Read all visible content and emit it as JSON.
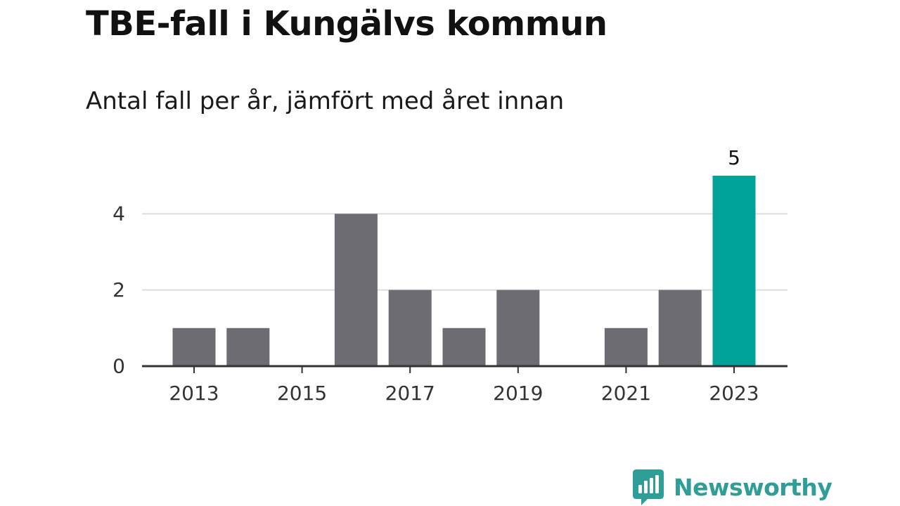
{
  "title": "TBE-fall i Kungälvs kommun",
  "subtitle": "Antal fall per år, jämfört med året innan",
  "brand": {
    "name": "Newsworthy",
    "color": "#2e9e96",
    "icon": "bar-chart-speech-bubble-icon"
  },
  "chart_data": {
    "type": "bar",
    "categories": [
      "2013",
      "2014",
      "2015",
      "2016",
      "2017",
      "2018",
      "2019",
      "2020",
      "2021",
      "2022",
      "2023"
    ],
    "values": [
      1,
      1,
      0,
      4,
      2,
      1,
      2,
      0,
      1,
      2,
      5
    ],
    "x_tick_labels": [
      "2013",
      "2015",
      "2017",
      "2019",
      "2021",
      "2023"
    ],
    "y_ticks": [
      0,
      2,
      4
    ],
    "ylim": [
      0,
      5
    ],
    "xlabel": "",
    "ylabel": "",
    "grid": true,
    "highlight": {
      "category": "2023",
      "value_label": "5"
    },
    "colors": {
      "bar": "#6d6c72",
      "highlight": "#00a398",
      "grid": "#dddddd",
      "axis": "#333333",
      "tick_text": "#333333"
    }
  }
}
